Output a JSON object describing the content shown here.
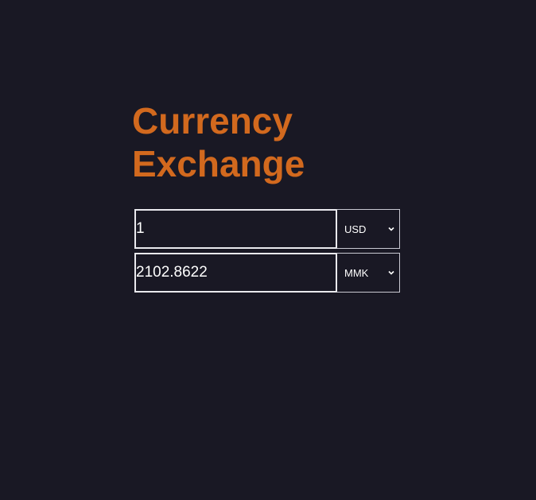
{
  "page": {
    "title_line1": "Currency",
    "title_line2": "Exchange"
  },
  "converter": {
    "from": {
      "amount": "1",
      "currency": "USD"
    },
    "to": {
      "amount": "2102.8622",
      "currency": "MMK"
    }
  },
  "colors": {
    "background": "#191824",
    "accent": "#d2691e",
    "border": "#e9e9ee",
    "text": "#ffffff"
  },
  "icons": {
    "dropdown": "chevron-down-icon"
  }
}
